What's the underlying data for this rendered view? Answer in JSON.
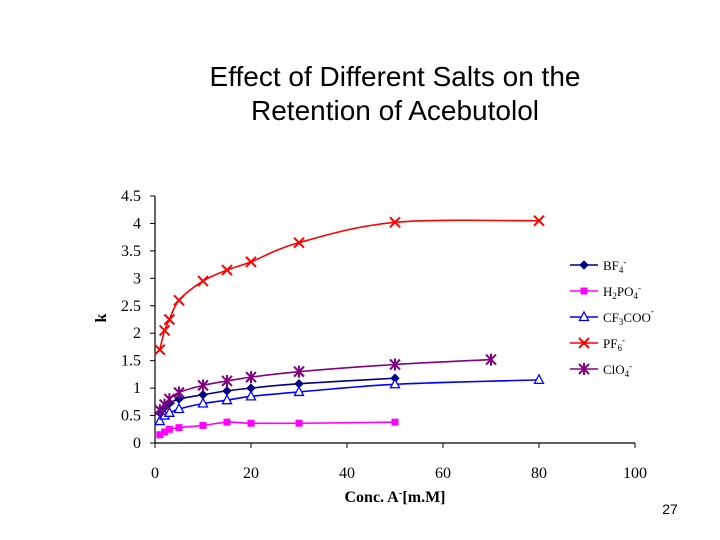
{
  "chart_data": {
    "type": "scatter",
    "title_lines": [
      "Effect of Different Salts on the",
      "Retention of Acebutolol"
    ],
    "xlabel": "Conc. A [m.M]",
    "ylabel": "k",
    "xlim": [
      0,
      100
    ],
    "ylim": [
      0,
      4.5
    ],
    "x_ticks": [
      "0",
      "20",
      "40",
      "60",
      "80",
      "100"
    ],
    "y_ticks": [
      "0",
      "0.5",
      "1",
      "1.5",
      "2",
      "2.5",
      "3",
      "3.5",
      "4",
      "4.5"
    ],
    "grid": false,
    "legend_position": "right",
    "series": [
      {
        "name": "BF4-",
        "color": "#000080",
        "marker": "diamond",
        "x": [
          1,
          2,
          3,
          5,
          10,
          15,
          20,
          30,
          50
        ],
        "y": [
          0.55,
          0.65,
          0.72,
          0.8,
          0.88,
          0.95,
          1.0,
          1.08,
          1.18
        ]
      },
      {
        "name": "H2PO4-",
        "color": "#FF00FF",
        "marker": "square",
        "x": [
          1,
          2,
          3,
          5,
          10,
          15,
          20,
          30,
          50
        ],
        "y": [
          0.15,
          0.2,
          0.25,
          0.28,
          0.32,
          0.38,
          0.36,
          0.36,
          0.38
        ]
      },
      {
        "name": "CF3COO-",
        "color": "#0000FF",
        "marker": "triangle",
        "x": [
          1,
          2,
          3,
          5,
          10,
          15,
          20,
          30,
          50,
          80
        ],
        "y": [
          0.4,
          0.5,
          0.55,
          0.62,
          0.72,
          0.78,
          0.85,
          0.93,
          1.07,
          1.15
        ]
      },
      {
        "name": "PF6-",
        "color": "#FF0000",
        "marker": "x",
        "x": [
          1,
          2,
          3,
          5,
          10,
          15,
          20,
          30,
          50,
          80
        ],
        "y": [
          1.7,
          2.05,
          2.25,
          2.6,
          2.95,
          3.15,
          3.3,
          3.65,
          4.02,
          4.05
        ]
      },
      {
        "name": "ClO4-",
        "color": "#800080",
        "marker": "star",
        "x": [
          1,
          2,
          3,
          5,
          10,
          15,
          20,
          30,
          50,
          70
        ],
        "y": [
          0.6,
          0.7,
          0.8,
          0.92,
          1.05,
          1.13,
          1.2,
          1.3,
          1.43,
          1.52
        ]
      }
    ]
  },
  "legend_labels": [
    {
      "base": "BF",
      "sub": "4",
      "sup": "-"
    },
    {
      "base": "H",
      "sub": "2",
      "mid": "PO",
      "sub2": "4",
      "sup": "-"
    },
    {
      "base": "CF",
      "sub": "3",
      "mid": "COO",
      "sup": "-"
    },
    {
      "base": "PF",
      "sub": "6",
      "sup": "-"
    },
    {
      "base": "ClO",
      "sub": "4",
      "sup": "-"
    }
  ],
  "xlabel_parts": {
    "pre": "Conc. A",
    "sup": "-",
    "post": "[m.M]"
  },
  "page_number": "27"
}
